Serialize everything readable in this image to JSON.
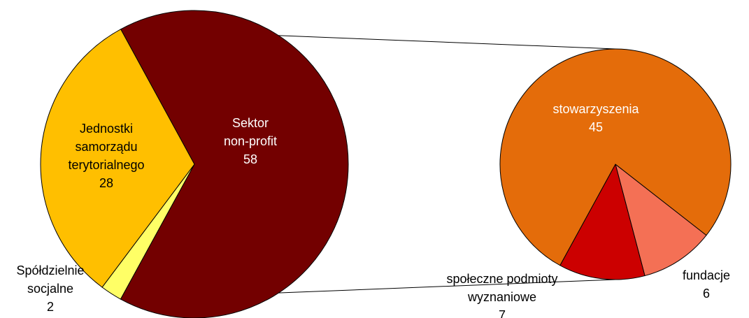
{
  "chart_data": [
    {
      "type": "pie",
      "categories": [
        "Sektor non-profit",
        "Spółdzielnie socjalne",
        "Jednostki samorządu terytorialnego"
      ],
      "values": [
        58,
        2,
        28
      ],
      "colors": [
        "#730000",
        "#ffff66",
        "#ffbf00"
      ]
    },
    {
      "type": "pie",
      "categories": [
        "fundacje",
        "społeczne podmioty wyznaniowe",
        "stowarzyszenia"
      ],
      "values": [
        6,
        7,
        45
      ],
      "colors": [
        "#f47055",
        "#cc0000",
        "#e46c0a"
      ]
    }
  ]
}
